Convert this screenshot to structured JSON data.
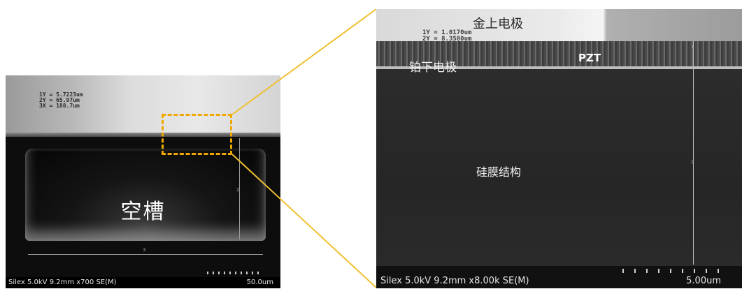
{
  "left_panel": {
    "cavity_label": "空槽",
    "measurements": [
      "1Y = 5.7223um",
      "2Y = 65.97um",
      "3X = 188.7um"
    ],
    "dim_horizontal_label": "3",
    "dim_vertical_label": "2",
    "footer_info": "Silex 5.0kV 9.2mm x700 SE(M)",
    "scale_bar": "50.0um"
  },
  "right_panel": {
    "label_gold": "金上电极",
    "label_pb_electrode": "铂下电极",
    "label_pzt": "PZT",
    "label_silicon": "硅膜结构",
    "measurements": [
      "1Y = 1.0170um",
      "2Y = 8.3580um"
    ],
    "dim_label_1": "1",
    "dim_label_2": "2",
    "footer_info": "Silex 5.0kV 9.2mm x8.00k SE(M)",
    "scale_bar": "5.00um"
  },
  "colors": {
    "zoom_highlight": "#f0a800",
    "connector_lines": "#f0c030"
  }
}
